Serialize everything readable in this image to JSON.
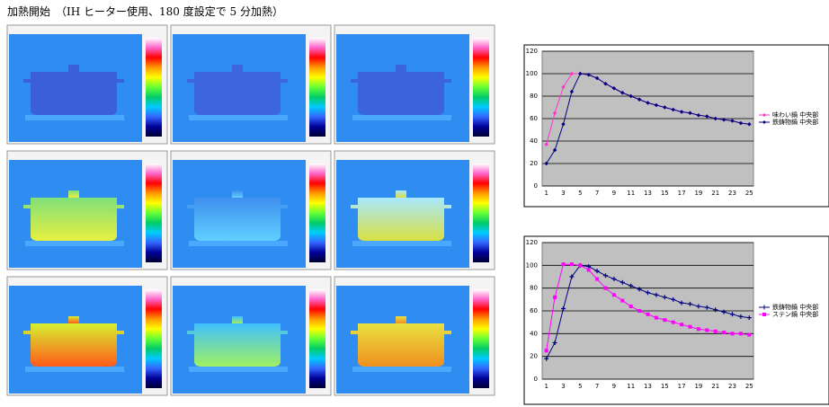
{
  "heading": "加熱開始　（IH ヒーター使用、180 度設定で 5 分加熱）",
  "chart_data": [
    {
      "type": "line",
      "categories": [
        "1",
        null,
        "3",
        null,
        "5",
        null,
        "7",
        null,
        "9",
        null,
        "11",
        null,
        "13",
        null,
        "15",
        null,
        "17",
        null,
        "19",
        null,
        "21",
        null,
        "23",
        null,
        "25"
      ],
      "ylim": [
        0,
        120
      ],
      "yticks": [
        0,
        20,
        40,
        60,
        80,
        100,
        120
      ],
      "grid": true,
      "series": [
        {
          "name": "味わい鍋 中央部",
          "color": "#ff33cc",
          "marker": "diamond",
          "values": [
            37,
            65,
            88,
            100,
            100,
            99,
            96,
            91,
            87,
            83,
            80,
            77,
            74,
            72,
            70,
            68,
            66,
            65,
            63,
            62,
            60,
            59,
            58,
            56,
            55
          ]
        },
        {
          "name": "鉄鋳物鍋 中央部",
          "color": "#000080",
          "marker": "diamond",
          "values": [
            20,
            32,
            55,
            84,
            100,
            99,
            96,
            91,
            87,
            83,
            80,
            77,
            74,
            72,
            70,
            68,
            66,
            65,
            63,
            62,
            60,
            59,
            58,
            56,
            55
          ]
        }
      ]
    },
    {
      "type": "line",
      "categories": [
        "1",
        null,
        "3",
        null,
        "5",
        null,
        "7",
        null,
        "9",
        null,
        "11",
        null,
        "13",
        null,
        "15",
        null,
        "17",
        null,
        "19",
        null,
        "21",
        null,
        "23",
        null,
        "25"
      ],
      "ylim": [
        0,
        120
      ],
      "yticks": [
        0,
        20,
        40,
        60,
        80,
        100,
        120
      ],
      "grid": true,
      "series": [
        {
          "name": "鉄鋳物鍋 中央部",
          "color": "#000080",
          "marker": "plus",
          "values": [
            18,
            32,
            62,
            90,
            100,
            99,
            95,
            91,
            88,
            85,
            82,
            79,
            76,
            74,
            72,
            70,
            67,
            66,
            64,
            63,
            61,
            59,
            57,
            55,
            54
          ]
        },
        {
          "name": "ステン鍋 中央部",
          "color": "#ff00ff",
          "marker": "square",
          "values": [
            25,
            72,
            101,
            101,
            100,
            96,
            88,
            80,
            74,
            69,
            64,
            60,
            57,
            54,
            52,
            50,
            48,
            46,
            44,
            43,
            42,
            41,
            40,
            40,
            39
          ]
        }
      ]
    }
  ]
}
